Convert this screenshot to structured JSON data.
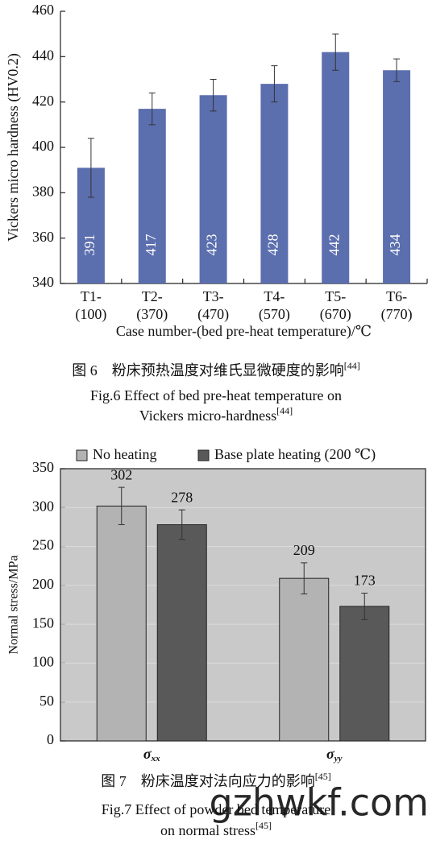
{
  "chart_data": [
    {
      "type": "bar",
      "ylabel": "Vickers micro hardness (HV0.2)",
      "xlabel": "Case number-(bed pre-heat temperature)/℃",
      "categories": [
        "T1-(100)",
        "T2-(370)",
        "T3-(470)",
        "T4-(570)",
        "T5-(670)",
        "T6-(770)"
      ],
      "values": [
        391,
        417,
        423,
        428,
        442,
        434
      ],
      "errors": [
        13,
        7,
        7,
        8,
        8,
        5
      ],
      "color": "#5b6eae",
      "ylim": [
        340,
        460
      ],
      "yticks": [
        340,
        360,
        380,
        400,
        420,
        440,
        460
      ]
    },
    {
      "type": "bar",
      "ylabel": "Normal stress/MPa",
      "categories": [
        "σxx",
        "σyy"
      ],
      "series": [
        {
          "name": "No heating",
          "color": "#b3b3b3",
          "values": [
            302,
            209
          ],
          "errors": [
            24,
            20
          ]
        },
        {
          "name": "Base plate heating (200 ℃)",
          "color": "#595959",
          "values": [
            278,
            173
          ],
          "errors": [
            19,
            17
          ]
        }
      ],
      "ylim": [
        0,
        350
      ],
      "yticks": [
        0,
        50,
        100,
        150,
        200,
        250,
        300,
        350
      ],
      "grid": true,
      "legend": "top"
    }
  ],
  "captions": [
    {
      "cn": "图 6　粉床预热温度对维氏显微硬度的影响",
      "cn_ref": "[44]",
      "en": [
        "Fig.6 Effect of bed pre-heat temperature on",
        "Vickers micro-hardness"
      ],
      "en_ref": "[44]"
    },
    {
      "cn": "图 7　粉床温度对法向应力的影响",
      "cn_ref": "[45]",
      "en": [
        "Fig.7 Effect of powder bed temperature",
        "on normal stress"
      ],
      "en_ref": "[45]"
    }
  ],
  "watermark": "gzhwkf.com"
}
